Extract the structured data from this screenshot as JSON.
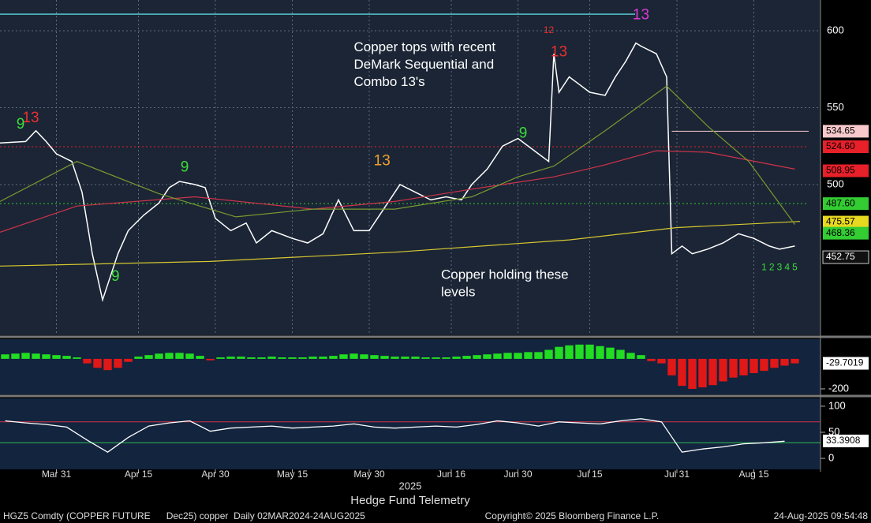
{
  "chart_data": [
    {
      "type": "price",
      "xlim": [
        -1,
        159
      ],
      "ylim": [
        402,
        620
      ],
      "yticks": [
        600,
        550,
        500
      ],
      "grid": true,
      "series": [
        {
          "color": "#ffffff",
          "x": [
            -1,
            4,
            6,
            8,
            10,
            13,
            15,
            17,
            18,
            19,
            20,
            22,
            24,
            27,
            30,
            32,
            34,
            37,
            39,
            41,
            44,
            47,
            49,
            52,
            56,
            59,
            62,
            65,
            68,
            71,
            74,
            77,
            80,
            83,
            86,
            89,
            91,
            94,
            97,
            100,
            104,
            106,
            107,
            108,
            110,
            112,
            114,
            117,
            119,
            121,
            123,
            124,
            127,
            129,
            130,
            132,
            134,
            137,
            140,
            143,
            146,
            149,
            151,
            154
          ],
          "values": [
            527,
            528,
            535,
            528,
            520,
            515,
            495,
            455,
            440,
            425,
            435,
            455,
            470,
            480,
            488,
            498,
            502,
            500,
            498,
            478,
            470,
            475,
            462,
            470,
            465,
            462,
            468,
            490,
            470,
            470,
            485,
            500,
            495,
            490,
            492,
            490,
            500,
            510,
            525,
            530,
            520,
            515,
            585,
            560,
            570,
            565,
            560,
            558,
            570,
            580,
            592,
            590,
            585,
            570,
            455,
            460,
            455,
            458,
            462,
            468,
            465,
            460,
            458,
            460
          ]
        },
        {
          "color": "#d8c830",
          "x": [
            -1,
            40,
            76,
            110,
            131,
            155
          ],
          "values": [
            447,
            450,
            456,
            464,
            472,
            476
          ]
        },
        {
          "color": "#d0334a",
          "x": [
            -1,
            14,
            37,
            60,
            76,
            91,
            107,
            116,
            127,
            137,
            154
          ],
          "values": [
            469,
            486,
            492,
            484,
            489,
            497,
            505,
            512,
            522,
            521,
            510
          ]
        },
        {
          "color": "#7a9a30",
          "x": [
            -1,
            14,
            30,
            37,
            45,
            60,
            76,
            91,
            100,
            107,
            117,
            129,
            137,
            145,
            154
          ],
          "values": [
            489,
            515,
            494,
            487,
            479,
            484,
            484,
            492,
            505,
            512,
            535,
            564,
            538,
            515,
            474
          ]
        }
      ],
      "price_labels": [
        {
          "value": 534.65,
          "color": "#f8c8cc",
          "text_color": "#000000",
          "line": "solid",
          "from": 130
        },
        {
          "value": 524.6,
          "label": "524.60",
          "color": "#e8202a",
          "text_color": "#000000",
          "line": "dotted",
          "from": -1
        },
        {
          "value": 508.95,
          "color": "#e8202a",
          "text_color": "#000000"
        },
        {
          "value": 487.6,
          "label": "487.60",
          "color": "#33cc33",
          "text_color": "#000000",
          "line": "dotted",
          "from": -1
        },
        {
          "value": 475.57,
          "color": "#e8d820",
          "text_color": "#000000"
        },
        {
          "value": 468.36,
          "color": "#33cc33",
          "text_color": "#000000"
        },
        {
          "value": 452.75,
          "color": "#111111",
          "text_color": "#ffffff"
        }
      ],
      "markers": [
        {
          "x": 124,
          "y": 610,
          "label": 13,
          "color": "#d63cd6"
        },
        {
          "x": 108,
          "y": 586,
          "label": 13,
          "color": "#e8312f"
        },
        {
          "x": 106,
          "y": 600,
          "label": 12,
          "color": "#e8312f"
        },
        {
          "x": 73.5,
          "y": 515,
          "label": 13,
          "color": "#f0a030"
        },
        {
          "x": 5,
          "y": 543,
          "label": 13,
          "color": "#e8312f"
        },
        {
          "x": 3,
          "y": 539,
          "label": 9,
          "color": "#3ddc3d"
        },
        {
          "x": 21.5,
          "y": 440,
          "label": 9,
          "color": "#3ddc3d"
        },
        {
          "x": 35,
          "y": 511,
          "label": 9,
          "color": "#3ddc3d"
        },
        {
          "x": 101,
          "y": 533,
          "label": 9,
          "color": "#3ddc3d"
        },
        {
          "x": 148,
          "y": 446,
          "label": 1,
          "color": "#3ddc3d"
        },
        {
          "x": 149.5,
          "y": 446,
          "label": 2,
          "color": "#3ddc3d"
        },
        {
          "x": 151,
          "y": 446,
          "label": 3,
          "color": "#3ddc3d"
        },
        {
          "x": 152.5,
          "y": 446,
          "label": 4,
          "color": "#3ddc3d"
        },
        {
          "x": 154,
          "y": 446,
          "label": 5,
          "color": "#3ddc3d"
        }
      ],
      "annotations": [
        {
          "lines": [
            "Copper tops with recent",
            "DeMark Sequential and",
            "Combo 13's"
          ],
          "x": 68,
          "y": 589
        },
        {
          "lines": [
            "Copper holding these",
            "levels"
          ],
          "x": 85,
          "y": 441
        }
      ]
    },
    {
      "type": "histogram",
      "xlim": [
        -1,
        159
      ],
      "ylim": [
        -237,
        131
      ],
      "yticks": [
        -200
      ],
      "last_value": -29.7019,
      "x": [
        0,
        2,
        4,
        6,
        8,
        10,
        12,
        14,
        16,
        18,
        20,
        22,
        24,
        26,
        28,
        30,
        32,
        34,
        36,
        38,
        40,
        42,
        44,
        46,
        48,
        50,
        52,
        54,
        56,
        58,
        60,
        62,
        64,
        66,
        68,
        70,
        72,
        74,
        76,
        78,
        80,
        82,
        84,
        86,
        88,
        90,
        92,
        94,
        96,
        98,
        100,
        102,
        104,
        106,
        108,
        110,
        112,
        114,
        116,
        118,
        120,
        122,
        124,
        126,
        128,
        130,
        132,
        134,
        136,
        138,
        140,
        142,
        144,
        146,
        148,
        150,
        152,
        154
      ],
      "values": [
        30,
        35,
        40,
        35,
        30,
        25,
        20,
        10,
        -30,
        -60,
        -75,
        -60,
        -20,
        15,
        25,
        35,
        40,
        40,
        35,
        20,
        -10,
        10,
        15,
        15,
        10,
        10,
        15,
        10,
        10,
        10,
        15,
        15,
        20,
        30,
        35,
        30,
        25,
        20,
        15,
        15,
        15,
        10,
        10,
        10,
        15,
        20,
        25,
        30,
        35,
        40,
        40,
        45,
        45,
        60,
        80,
        90,
        95,
        95,
        85,
        75,
        60,
        40,
        25,
        -15,
        -30,
        -110,
        -180,
        -200,
        -190,
        -175,
        -150,
        -125,
        -110,
        -95,
        -80,
        -60,
        -45,
        -30
      ],
      "up_color": "#22dd22",
      "down_color": "#e01818"
    },
    {
      "type": "line",
      "xlim": [
        -1,
        159
      ],
      "ylim": [
        -21,
        115
      ],
      "yticks": [
        100,
        50,
        0
      ],
      "reference_lines": [
        {
          "value": 70,
          "color": "#d0334a"
        },
        {
          "value": 30,
          "color": "#33bb55"
        }
      ],
      "last_value": 33.3908,
      "color": "#ffffff",
      "x": [
        0,
        4,
        8,
        12,
        16,
        20,
        24,
        28,
        32,
        36,
        40,
        44,
        48,
        52,
        56,
        60,
        64,
        68,
        72,
        76,
        80,
        84,
        88,
        92,
        96,
        100,
        104,
        108,
        112,
        116,
        120,
        124,
        128,
        132,
        136,
        140,
        144,
        148,
        152
      ],
      "values": [
        72,
        68,
        65,
        60,
        35,
        12,
        40,
        62,
        68,
        72,
        52,
        58,
        60,
        62,
        58,
        60,
        62,
        66,
        60,
        58,
        60,
        62,
        60,
        65,
        72,
        68,
        62,
        70,
        68,
        66,
        72,
        76,
        70,
        12,
        18,
        22,
        28,
        30,
        33
      ],
      "xticks": [
        {
          "value": 10,
          "label": "Mar 31"
        },
        {
          "value": 26,
          "label": "Apr 15"
        },
        {
          "value": 41,
          "label": "Apr 30"
        },
        {
          "value": 56,
          "label": "May 15"
        },
        {
          "value": 71,
          "label": "May 30"
        },
        {
          "value": 87,
          "label": "Jun 16"
        },
        {
          "value": 100,
          "label": "Jun 30"
        },
        {
          "value": 114,
          "label": "Jul 15"
        },
        {
          "value": 131,
          "label": "Jul 31"
        },
        {
          "value": 146,
          "label": "Aug 15"
        }
      ],
      "xlabel": "2025",
      "title": "Hedge Fund Telemetry"
    }
  ],
  "footer": {
    "left": "HGZ5 Comdty (COPPER FUTURE      Dec25) copper  Daily 02MAR2024-24AUG2025",
    "center": "Copyright© 2025 Bloomberg Finance L.P.",
    "right": "24-Aug-2025 09:54:48"
  }
}
